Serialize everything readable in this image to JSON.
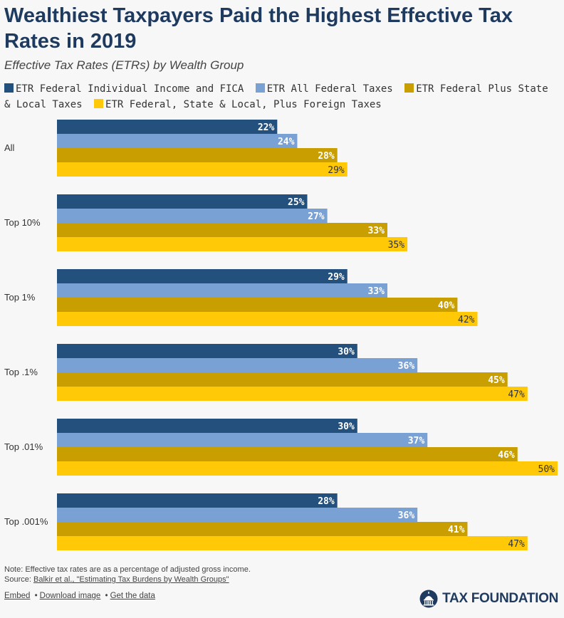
{
  "title": "Wealthiest Taxpayers Paid the Highest Effective Tax Rates in 2019",
  "subtitle": "Effective Tax Rates (ETRs) by Wealth Group",
  "colors": [
    "#24507d",
    "#7aa1d4",
    "#c99e00",
    "#ffc907"
  ],
  "chart_data": {
    "type": "bar",
    "orientation": "horizontal",
    "categories": [
      "All",
      "Top 10%",
      "Top 1%",
      "Top .1%",
      "Top .01%",
      "Top .001%"
    ],
    "series": [
      {
        "name": "ETR Federal Individual Income and FICA",
        "values": [
          22,
          25,
          29,
          30,
          30,
          28
        ],
        "labels": [
          "22%",
          "25%",
          "29%",
          "30%",
          "30%",
          "28%"
        ]
      },
      {
        "name": "ETR All Federal Taxes",
        "values": [
          24,
          27,
          33,
          36,
          37,
          36
        ],
        "labels": [
          "24%",
          "27%",
          "33%",
          "36%",
          "37%",
          "36%"
        ]
      },
      {
        "name": "ETR Federal Plus State & Local Taxes",
        "values": [
          28,
          33,
          40,
          45,
          46,
          41
        ],
        "labels": [
          "28%",
          "33%",
          "40%",
          "45%",
          "46%",
          "41%"
        ]
      },
      {
        "name": "ETR Federal, State & Local, Plus Foreign Taxes",
        "values": [
          29,
          35,
          42,
          47,
          50,
          47
        ],
        "labels": [
          "29%",
          "35%",
          "42%",
          "47%",
          "50%",
          "47%"
        ]
      }
    ],
    "xlim": [
      0,
      50
    ],
    "legend_position": "top",
    "grid": false,
    "data_labels": "inside-end"
  },
  "footer": {
    "note": "Note: Effective tax rates are as a percentage of adjusted gross income.",
    "source_prefix": "Source:",
    "source_link": "Balkir et al., \"Estimating Tax Burdens by Wealth Groups\"",
    "embed": "Embed",
    "download": "Download image",
    "get_data": "Get the data",
    "sep": "•"
  },
  "brand": {
    "name": "TAX FOUNDATION",
    "logo_icon": "capitol-dome-icon"
  }
}
